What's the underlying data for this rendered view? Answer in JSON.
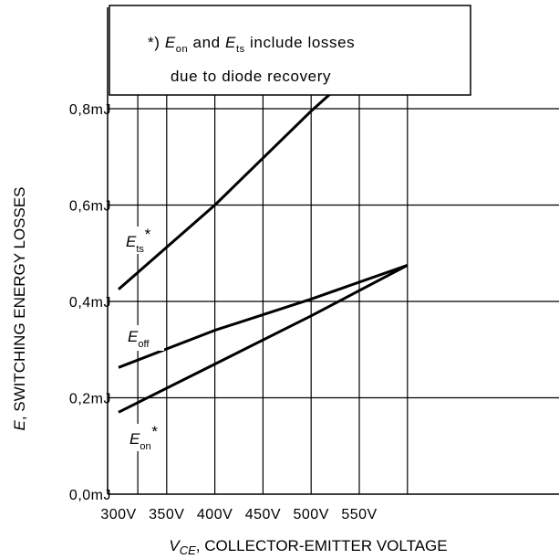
{
  "chart_data": {
    "type": "line",
    "xlabel": {
      "var": "V",
      "sub": "CE",
      "rest": ", COLLECTOR-EMITTER VOLTAGE"
    },
    "ylabel": {
      "var": "E",
      "rest": ", SWITCHING ENERGY LOSSES"
    },
    "xlim": [
      300,
      600
    ],
    "ylim": [
      0.0,
      1.0
    ],
    "x_ticks": [
      300,
      350,
      400,
      450,
      500,
      550
    ],
    "x_tick_labels": [
      "300V",
      "350V",
      "400V",
      "450V",
      "500V",
      "550V"
    ],
    "y_ticks": [
      0.0,
      0.2,
      0.4,
      0.6,
      0.8
    ],
    "y_tick_labels": [
      "0,0mJ",
      "0,2mJ",
      "0,4mJ",
      "0,6mJ",
      "0,8mJ"
    ],
    "grid": true,
    "series": [
      {
        "name": "E_ts*",
        "x": [
          300,
          400,
          500,
          600
        ],
        "y": [
          0.425,
          0.6,
          0.795,
          0.975
        ]
      },
      {
        "name": "E_off",
        "x": [
          300,
          400,
          500,
          600
        ],
        "y": [
          0.263,
          0.34,
          0.405,
          0.475
        ]
      },
      {
        "name": "E_on*",
        "x": [
          300,
          400,
          500,
          600
        ],
        "y": [
          0.17,
          0.27,
          0.37,
          0.475
        ]
      }
    ],
    "series_labels": [
      {
        "main": "E",
        "sub": "ts",
        "sup": "*"
      },
      {
        "main": "E",
        "sub": "off",
        "sup": ""
      },
      {
        "main": "E",
        "sub": "on",
        "sup": "*"
      }
    ],
    "annotation": {
      "lines": [
        {
          "prefix": "*) ",
          "e1": "E",
          "s1": "on",
          "mid": " and ",
          "e2": "E",
          "s2": "ts",
          "tail": " include losses"
        },
        {
          "text": "due to diode recovery"
        }
      ]
    }
  }
}
